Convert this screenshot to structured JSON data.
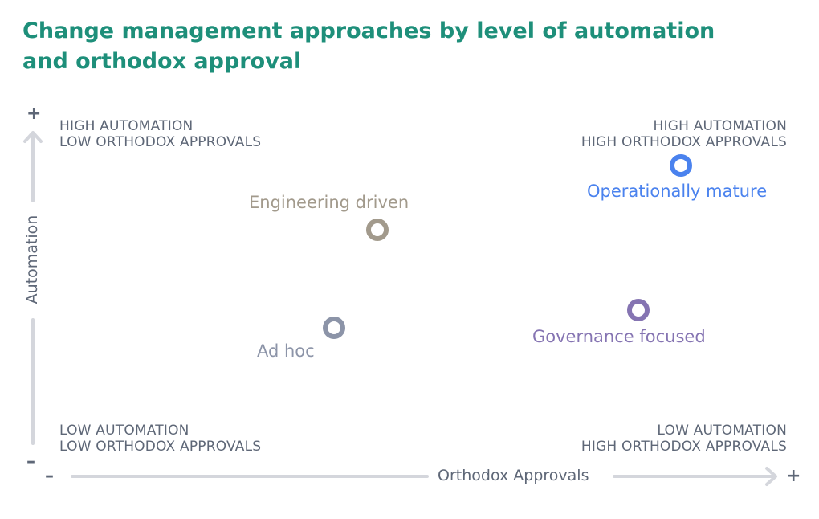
{
  "title": {
    "line1": "Change management approaches by level of automation",
    "line2": "and orthodox approval"
  },
  "axes": {
    "y_label": "Automation",
    "x_label": "Orthodox Approvals",
    "y_plus": "+",
    "y_minus": "–",
    "x_minus": "–",
    "x_plus": "+"
  },
  "quadrants": {
    "top_left": {
      "line1": "HIGH AUTOMATION",
      "line2": "LOW ORTHODOX APPROVALS"
    },
    "top_right": {
      "line1": "HIGH AUTOMATION",
      "line2": "HIGH ORTHODOX APPROVALS"
    },
    "bottom_left": {
      "line1": "LOW AUTOMATION",
      "line2": "LOW ORTHODOX APPROVALS"
    },
    "bottom_right": {
      "line1": "LOW AUTOMATION",
      "line2": "HIGH ORTHODOX APPROVALS"
    }
  },
  "points": [
    {
      "name": "Engineering driven",
      "color": "#a29a8c"
    },
    {
      "name": "Operationally mature",
      "color": "#4a82ee"
    },
    {
      "name": "Ad hoc",
      "color": "#8c94a8"
    },
    {
      "name": "Governance focused",
      "color": "#8574b2"
    }
  ],
  "colors": {
    "title": "#1e8f7a",
    "gradient_orange": "#f9ad2c",
    "gradient_blue": "#3d84f0",
    "gradient_red": "#f65133",
    "axis_gray": "#d4d6dc"
  }
}
